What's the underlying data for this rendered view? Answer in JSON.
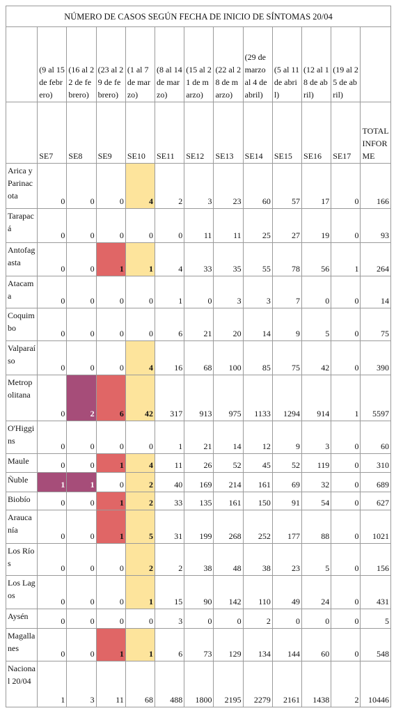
{
  "title": "NÚMERO DE CASOS SEGÚN FECHA DE INICIO DE SÍNTOMAS 20/04",
  "columns": [
    {
      "dates": "(9 al 15 de febrero)",
      "week": "SE7"
    },
    {
      "dates": "(16 al 22 de febrero)",
      "week": "SE8"
    },
    {
      "dates": "(23 al 29 de febrero)",
      "week": "SE9"
    },
    {
      "dates": "(1 al 7 de marzo)",
      "week": "SE10"
    },
    {
      "dates": "(8 al 14 de marzo)",
      "week": "SE11"
    },
    {
      "dates": "(15 al 21 de marzo)",
      "week": "SE12"
    },
    {
      "dates": "(22 al 28 de marzo)",
      "week": "SE13"
    },
    {
      "dates": "(29 de marzo al 4 de abril)",
      "week": "SE14"
    },
    {
      "dates": "(5 al 11 de abril)",
      "week": "SE15"
    },
    {
      "dates": "(12 al 18 de abril)",
      "week": "SE16"
    },
    {
      "dates": "(19 al 25 de abril)",
      "week": "SE17"
    }
  ],
  "total_header": "TOTAL INFORME",
  "rows": [
    {
      "label": "Arica y Parinacota",
      "values": [
        0,
        0,
        0,
        4,
        2,
        3,
        23,
        60,
        57,
        17,
        0,
        166
      ],
      "colors": [
        null,
        null,
        null,
        "#fde49c",
        null,
        null,
        null,
        null,
        null,
        null,
        null,
        null
      ]
    },
    {
      "label": "Tarapacá",
      "values": [
        0,
        0,
        0,
        0,
        0,
        11,
        11,
        25,
        27,
        19,
        0,
        93
      ],
      "colors": [
        null,
        null,
        null,
        null,
        null,
        null,
        null,
        null,
        null,
        null,
        null,
        null
      ]
    },
    {
      "label": "Antofagasta",
      "values": [
        0,
        0,
        1,
        1,
        4,
        33,
        35,
        55,
        78,
        56,
        1,
        264
      ],
      "colors": [
        null,
        null,
        "#e06666",
        "#fde49c",
        null,
        null,
        null,
        null,
        null,
        null,
        null,
        null
      ]
    },
    {
      "label": "Atacama",
      "values": [
        0,
        0,
        0,
        0,
        1,
        0,
        3,
        3,
        7,
        0,
        0,
        14
      ],
      "colors": [
        null,
        null,
        null,
        null,
        null,
        null,
        null,
        null,
        null,
        null,
        null,
        null
      ]
    },
    {
      "label": "Coquimbo",
      "values": [
        0,
        0,
        0,
        0,
        6,
        21,
        20,
        14,
        9,
        5,
        0,
        75
      ],
      "colors": [
        null,
        null,
        null,
        null,
        null,
        null,
        null,
        null,
        null,
        null,
        null,
        null
      ]
    },
    {
      "label": "Valparaíso",
      "values": [
        0,
        0,
        0,
        4,
        16,
        68,
        100,
        85,
        75,
        42,
        0,
        390
      ],
      "colors": [
        null,
        null,
        null,
        "#fde49c",
        null,
        null,
        null,
        null,
        null,
        null,
        null,
        null
      ]
    },
    {
      "label": "Metropolitana",
      "values": [
        0,
        2,
        6,
        42,
        317,
        913,
        975,
        1133,
        1294,
        914,
        1,
        5597
      ],
      "colors": [
        null,
        "#a64d79",
        "#e06666",
        "#fde49c",
        null,
        null,
        null,
        null,
        null,
        null,
        null,
        null
      ]
    },
    {
      "label": "O'Higgins",
      "values": [
        0,
        0,
        0,
        0,
        1,
        21,
        14,
        12,
        9,
        3,
        0,
        60
      ],
      "colors": [
        null,
        null,
        null,
        null,
        null,
        null,
        null,
        null,
        null,
        null,
        null,
        null
      ]
    },
    {
      "label": "Maule",
      "values": [
        0,
        0,
        1,
        4,
        11,
        26,
        52,
        45,
        52,
        119,
        0,
        310
      ],
      "colors": [
        null,
        null,
        "#e06666",
        "#fde49c",
        null,
        null,
        null,
        null,
        null,
        null,
        null,
        null
      ]
    },
    {
      "label": "Ñuble",
      "values": [
        1,
        1,
        0,
        2,
        40,
        169,
        214,
        161,
        69,
        32,
        0,
        689
      ],
      "colors": [
        "#a64d79",
        "#a64d79",
        null,
        "#fde49c",
        null,
        null,
        null,
        null,
        null,
        null,
        null,
        null
      ]
    },
    {
      "label": "Biobío",
      "values": [
        0,
        0,
        1,
        2,
        33,
        135,
        161,
        150,
        91,
        54,
        0,
        627
      ],
      "colors": [
        null,
        null,
        "#e06666",
        "#fde49c",
        null,
        null,
        null,
        null,
        null,
        null,
        null,
        null
      ]
    },
    {
      "label": "Araucanía",
      "values": [
        0,
        0,
        1,
        5,
        31,
        199,
        268,
        252,
        177,
        88,
        0,
        1021
      ],
      "colors": [
        null,
        null,
        "#e06666",
        "#fde49c",
        null,
        null,
        null,
        null,
        null,
        null,
        null,
        null
      ]
    },
    {
      "label": "Los Ríos",
      "values": [
        0,
        0,
        0,
        2,
        2,
        38,
        48,
        38,
        23,
        5,
        0,
        156
      ],
      "colors": [
        null,
        null,
        null,
        "#fde49c",
        null,
        null,
        null,
        null,
        null,
        null,
        null,
        null
      ]
    },
    {
      "label": "Los Lagos",
      "values": [
        0,
        0,
        0,
        1,
        15,
        90,
        142,
        110,
        49,
        24,
        0,
        431
      ],
      "colors": [
        null,
        null,
        null,
        "#fde49c",
        null,
        null,
        null,
        null,
        null,
        null,
        null,
        null
      ]
    },
    {
      "label": "Aysén",
      "values": [
        0,
        0,
        0,
        0,
        3,
        0,
        0,
        2,
        0,
        0,
        0,
        5
      ],
      "colors": [
        null,
        null,
        null,
        null,
        null,
        null,
        null,
        null,
        null,
        null,
        null,
        null
      ]
    },
    {
      "label": "Magallanes",
      "values": [
        0,
        0,
        1,
        1,
        6,
        73,
        129,
        134,
        144,
        60,
        0,
        548
      ],
      "colors": [
        null,
        null,
        "#e06666",
        "#fde49c",
        null,
        null,
        null,
        null,
        null,
        null,
        null,
        null
      ]
    },
    {
      "label": "Nacional 20/04",
      "values": [
        1,
        3,
        11,
        68,
        488,
        1800,
        2195,
        2279,
        2161,
        1438,
        2,
        10446
      ],
      "colors": [
        null,
        null,
        null,
        null,
        null,
        null,
        null,
        null,
        null,
        null,
        null,
        null
      ]
    }
  ]
}
